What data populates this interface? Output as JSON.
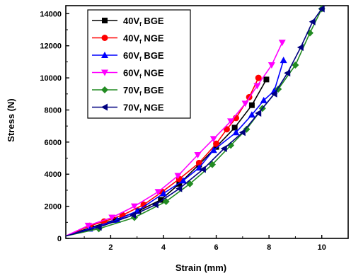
{
  "chart_data": {
    "type": "line",
    "title": "",
    "xlabel": "Strain (mm)",
    "ylabel": "Stress (N)",
    "xlim": [
      0.3,
      11
    ],
    "ylim": [
      0,
      14500
    ],
    "x_ticks": [
      2,
      4,
      6,
      8,
      10
    ],
    "y_ticks": [
      0,
      2000,
      4000,
      6000,
      8000,
      10000,
      12000,
      14000
    ],
    "grid": false,
    "legend_position": "top-left",
    "series": [
      {
        "name": "40Vf BGE",
        "label_main": "40V",
        "label_sub": "f",
        "label_tail": " BGE",
        "color": "#000000",
        "marker": "square",
        "x": [
          0.3,
          1.25,
          2.15,
          3.05,
          3.9,
          4.6,
          5.35,
          6.0,
          6.7,
          7.35,
          7.9
        ],
        "y": [
          150,
          680,
          1150,
          1700,
          2400,
          3400,
          4600,
          5700,
          6900,
          8300,
          9900
        ]
      },
      {
        "name": "40Vf NGE",
        "label_main": "40V",
        "label_sub": "f",
        "label_tail": " NGE",
        "color": "#ff0000",
        "marker": "circle",
        "x": [
          0.3,
          1.2,
          1.75,
          2.45,
          3.25,
          3.95,
          4.6,
          5.35,
          6.0,
          6.4,
          6.75,
          7.25,
          7.6
        ],
        "y": [
          150,
          780,
          1050,
          1450,
          2100,
          2900,
          3700,
          4700,
          5900,
          6800,
          7500,
          8800,
          10000
        ]
      },
      {
        "name": "60Vf BGE",
        "label_main": "60V",
        "label_sub": "f",
        "label_tail": " BGE",
        "color": "#0000ff",
        "marker": "triangle-up",
        "x": [
          0.3,
          1.2,
          2.25,
          3.0,
          4.0,
          4.75,
          5.35,
          5.9,
          6.75,
          7.35,
          7.8,
          8.2,
          8.55
        ],
        "y": [
          150,
          600,
          1150,
          1700,
          2800,
          3600,
          4400,
          5500,
          6600,
          7700,
          8600,
          9200,
          11100
        ]
      },
      {
        "name": "60Vf NGE",
        "label_main": "60V",
        "label_sub": "f",
        "label_tail": " NGE",
        "color": "#ff00ff",
        "marker": "triangle-down",
        "x": [
          0.3,
          1.15,
          2.05,
          2.9,
          3.8,
          4.55,
          5.3,
          5.9,
          6.55,
          7.1,
          7.55,
          8.1,
          8.5
        ],
        "y": [
          150,
          800,
          1300,
          2000,
          2900,
          3900,
          5200,
          6200,
          7300,
          8400,
          9500,
          10800,
          12200
        ]
      },
      {
        "name": "70Vf BGE",
        "label_main": "70V",
        "label_sub": "f",
        "label_tail": " BGE",
        "color": "#228b22",
        "marker": "diamond",
        "x": [
          0.3,
          1.55,
          2.9,
          4.1,
          5.0,
          5.85,
          6.55,
          7.15,
          7.75,
          8.35,
          9.0,
          9.55,
          10.0
        ],
        "y": [
          150,
          600,
          1300,
          2300,
          3400,
          4600,
          5800,
          6800,
          8100,
          9300,
          10800,
          12800,
          14300
        ]
      },
      {
        "name": "70Vf NGE",
        "label_main": "70V",
        "label_sub": "f",
        "label_tail": " NGE",
        "color": "#000080",
        "marker": "triangle-left",
        "x": [
          0.3,
          1.55,
          2.85,
          3.7,
          4.6,
          5.5,
          6.3,
          7.0,
          7.6,
          8.2,
          8.7,
          9.2,
          9.65,
          10.0
        ],
        "y": [
          150,
          700,
          1450,
          2100,
          3100,
          4300,
          5600,
          6600,
          7800,
          9000,
          10300,
          11900,
          13500,
          14300
        ]
      }
    ]
  }
}
